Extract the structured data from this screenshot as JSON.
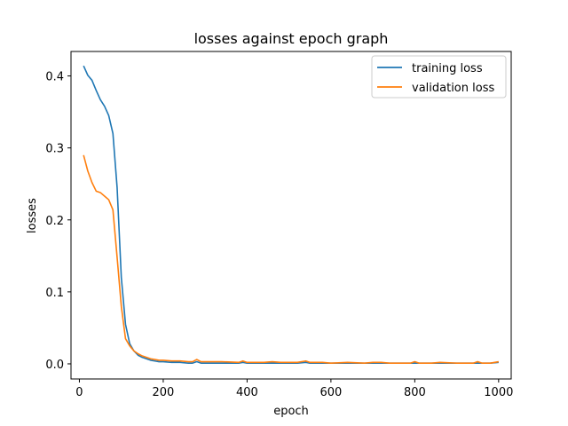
{
  "chart_data": {
    "type": "line",
    "title": "losses against epoch graph",
    "xlabel": "epoch",
    "ylabel": "losses",
    "xlim": [
      -20,
      1030
    ],
    "ylim": [
      -0.021,
      0.434
    ],
    "xticks": [
      0,
      200,
      400,
      600,
      800,
      1000
    ],
    "xtick_labels": [
      "0",
      "200",
      "400",
      "600",
      "800",
      "1000"
    ],
    "yticks": [
      0.0,
      0.1,
      0.2,
      0.3,
      0.4
    ],
    "ytick_labels": [
      "0.0",
      "0.1",
      "0.2",
      "0.3",
      "0.4"
    ],
    "grid": false,
    "legend_position": "top-right",
    "series": [
      {
        "name": "training loss",
        "color": "#1f77b4",
        "x": [
          10,
          20,
          30,
          40,
          50,
          60,
          70,
          80,
          90,
          100,
          110,
          120,
          130,
          140,
          150,
          160,
          170,
          180,
          190,
          200,
          220,
          240,
          260,
          270,
          280,
          290,
          300,
          340,
          380,
          390,
          400,
          440,
          460,
          480,
          520,
          540,
          550,
          580,
          600,
          640,
          680,
          700,
          720,
          760,
          790,
          800,
          810,
          840,
          860,
          900,
          940,
          950,
          960,
          980,
          1000
        ],
        "values": [
          0.414,
          0.401,
          0.394,
          0.38,
          0.367,
          0.358,
          0.345,
          0.32,
          0.245,
          0.12,
          0.055,
          0.028,
          0.018,
          0.012,
          0.009,
          0.007,
          0.005,
          0.004,
          0.003,
          0.003,
          0.002,
          0.002,
          0.001,
          0.001,
          0.003,
          0.001,
          0.001,
          0.001,
          0.001,
          0.002,
          0.001,
          0.001,
          0.001,
          0.001,
          0.001,
          0.002,
          0.001,
          0.001,
          0.001,
          0.001,
          0.001,
          0.001,
          0.001,
          0.001,
          0.001,
          0.001,
          0.001,
          0.001,
          0.001,
          0.001,
          0.001,
          0.001,
          0.001,
          0.001,
          0.002
        ]
      },
      {
        "name": "validation loss",
        "color": "#ff7f0e",
        "x": [
          10,
          20,
          30,
          40,
          50,
          60,
          70,
          80,
          90,
          100,
          110,
          120,
          130,
          140,
          150,
          160,
          170,
          180,
          190,
          200,
          220,
          240,
          260,
          270,
          280,
          290,
          300,
          340,
          380,
          390,
          400,
          420,
          440,
          460,
          480,
          520,
          540,
          550,
          580,
          600,
          640,
          680,
          700,
          720,
          740,
          760,
          790,
          800,
          810,
          840,
          860,
          900,
          940,
          950,
          960,
          980,
          1000
        ],
        "values": [
          0.29,
          0.268,
          0.252,
          0.24,
          0.238,
          0.233,
          0.228,
          0.214,
          0.148,
          0.08,
          0.035,
          0.025,
          0.018,
          0.014,
          0.011,
          0.009,
          0.007,
          0.006,
          0.005,
          0.005,
          0.004,
          0.004,
          0.003,
          0.003,
          0.006,
          0.003,
          0.003,
          0.003,
          0.002,
          0.004,
          0.002,
          0.002,
          0.002,
          0.003,
          0.002,
          0.002,
          0.004,
          0.002,
          0.002,
          0.001,
          0.002,
          0.001,
          0.002,
          0.002,
          0.001,
          0.001,
          0.001,
          0.003,
          0.001,
          0.001,
          0.002,
          0.001,
          0.001,
          0.003,
          0.001,
          0.001,
          0.003
        ]
      }
    ]
  }
}
